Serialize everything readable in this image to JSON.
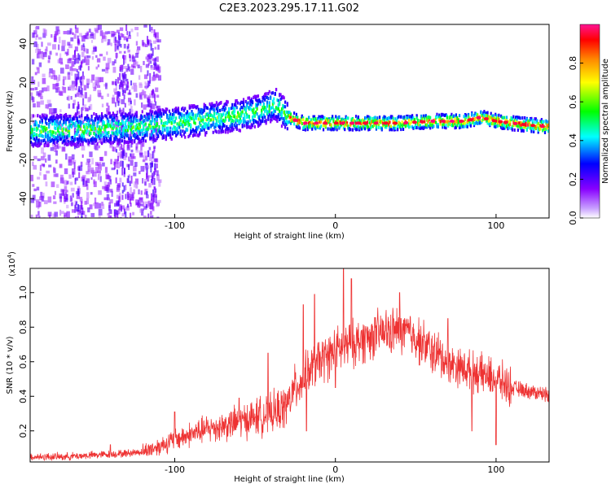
{
  "figure_title": "C2E3.2023.295.17.11.G02",
  "chart_data": [
    {
      "type": "heatmap",
      "title": "C2E3.2023.295.17.11.G02",
      "xlabel": "Height of straight line (km)",
      "ylabel": "Frequency (Hz)",
      "xlim": [
        -190,
        133
      ],
      "ylim": [
        -50,
        50
      ],
      "x_ticks": [
        -100,
        0,
        100
      ],
      "y_ticks": [
        -40,
        -20,
        0,
        20,
        40
      ],
      "grid": false,
      "colorbar": {
        "label": "Normalized spectral amplitude",
        "range": [
          0,
          1
        ],
        "ticks": [
          0.0,
          0.2,
          0.4,
          0.6,
          0.8
        ],
        "tick_labels": [
          "0.0",
          "0.2",
          "0.4",
          "0.6",
          "0.8"
        ],
        "colormap": [
          "#ffffff",
          "#8800ff",
          "#0000ff",
          "#00ffff",
          "#00ff00",
          "#ffff00",
          "#ff8800",
          "#ff0000",
          "#ff0088"
        ]
      },
      "ridge": {
        "x": [
          -190,
          -150,
          -120,
          -100,
          -80,
          -60,
          -45,
          -38,
          -30,
          -20,
          0,
          20,
          40,
          60,
          80,
          90,
          100,
          110,
          120,
          133
        ],
        "y": [
          -5,
          -4,
          -3,
          -1,
          1,
          3,
          6,
          9,
          2,
          -1,
          -1,
          -1,
          -1,
          0,
          0,
          2,
          0,
          -1,
          -2,
          -3
        ]
      }
    },
    {
      "type": "line",
      "xlabel": "Height of straight line (km)",
      "ylabel": "SNR (10 * v/v)",
      "y_multiplier": "(x10^4)",
      "y_multiplier_base": "(x10",
      "y_multiplier_exp": "4",
      "y_multiplier_close": ")",
      "xlim": [
        -190,
        133
      ],
      "ylim": [
        0.02,
        1.14
      ],
      "x_ticks": [
        -100,
        0,
        100
      ],
      "y_ticks": [
        0.2,
        0.4,
        0.6,
        0.8,
        1.0
      ],
      "y_tick_labels": [
        "0.2",
        "0.4",
        "0.6",
        "0.8",
        "1.0"
      ],
      "grid": false,
      "series": [
        {
          "color": "#ee3333",
          "x": [
            -190,
            -170,
            -150,
            -130,
            -120,
            -110,
            -100,
            -90,
            -80,
            -70,
            -60,
            -50,
            -40,
            -35,
            -30,
            -25,
            -20,
            -15,
            -10,
            -5,
            0,
            5,
            10,
            20,
            30,
            40,
            45,
            50,
            60,
            70,
            80,
            90,
            100,
            110,
            120,
            133
          ],
          "y": [
            0.05,
            0.05,
            0.06,
            0.07,
            0.08,
            0.11,
            0.15,
            0.18,
            0.21,
            0.23,
            0.25,
            0.28,
            0.3,
            0.32,
            0.35,
            0.45,
            0.5,
            0.55,
            0.6,
            0.63,
            0.66,
            0.68,
            0.7,
            0.74,
            0.77,
            0.78,
            0.77,
            0.74,
            0.66,
            0.6,
            0.56,
            0.53,
            0.5,
            0.45,
            0.43,
            0.41
          ],
          "peaks": [
            {
              "x": -140,
              "y": 0.12
            },
            {
              "x": -100,
              "y": 0.31
            },
            {
              "x": -60,
              "y": 0.39
            },
            {
              "x": -42,
              "y": 0.65
            },
            {
              "x": -20,
              "y": 0.93
            },
            {
              "x": -13,
              "y": 0.99
            },
            {
              "x": 5,
              "y": 1.14
            },
            {
              "x": 10,
              "y": 1.08
            },
            {
              "x": 40,
              "y": 1.0
            },
            {
              "x": 70,
              "y": 0.85
            },
            {
              "x": 100,
              "y": 0.75
            }
          ],
          "dips": [
            {
              "x": -18,
              "y": 0.2
            },
            {
              "x": 0,
              "y": 0.45
            },
            {
              "x": 85,
              "y": 0.2
            },
            {
              "x": 100,
              "y": 0.12
            }
          ]
        }
      ]
    }
  ]
}
